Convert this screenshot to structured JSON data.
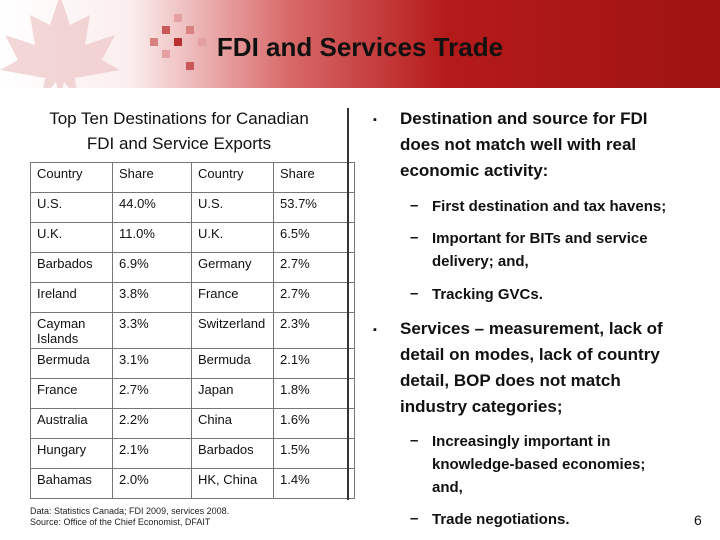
{
  "title": "FDI and Services Trade",
  "table": {
    "title_line1": "Top Ten Destinations for Canadian",
    "title_line2": "FDI and Service Exports",
    "headers": [
      "Country",
      "Share",
      "Country",
      "Share"
    ],
    "rows": [
      [
        "U.S.",
        "44.0%",
        "U.S.",
        "53.7%"
      ],
      [
        "U.K.",
        "11.0%",
        "U.K.",
        "6.5%"
      ],
      [
        "Barbados",
        "6.9%",
        "Germany",
        "2.7%"
      ],
      [
        "Ireland",
        "3.8%",
        "France",
        "2.7%"
      ],
      [
        "Cayman Islands",
        "3.3%",
        "Switzerland",
        "2.3%"
      ],
      [
        "Bermuda",
        "3.1%",
        "Bermuda",
        "2.1%"
      ],
      [
        "France",
        "2.7%",
        "Japan",
        "1.8%"
      ],
      [
        "Australia",
        "2.2%",
        "China",
        "1.6%"
      ],
      [
        "Hungary",
        "2.1%",
        "Barbados",
        "1.5%"
      ],
      [
        "Bahamas",
        "2.0%",
        "HK, China",
        "1.4%"
      ]
    ]
  },
  "source": {
    "line1": "Data: Statistics Canada; FDI 2009, services 2008.",
    "line2": "Source: Office of the Chief Economist, DFAIT"
  },
  "bullets": {
    "b1_line1": "Destination and source for FDI",
    "b1_line2": "does not match well with real",
    "b1_line3": "economic activity:",
    "b1_sub1": "First destination and tax havens;",
    "b1_sub2_line1": "Important for BITs and service",
    "b1_sub2_line2": "delivery; and,",
    "b1_sub3": "Tracking GVCs.",
    "b2_line1": "Services – measurement, lack of",
    "b2_line2": "detail on modes, lack of country",
    "b2_line3": "detail, BOP does not match",
    "b2_line4": "industry categories;",
    "b2_sub1_line1": "Increasingly important in",
    "b2_sub1_line2": "knowledge-based economies;",
    "b2_sub1_line3": "and,",
    "b2_sub2": "Trade negotiations."
  },
  "page_number": "6",
  "colors": {
    "header_red": "#b51a1a",
    "leaf": "#e9b8b8"
  }
}
